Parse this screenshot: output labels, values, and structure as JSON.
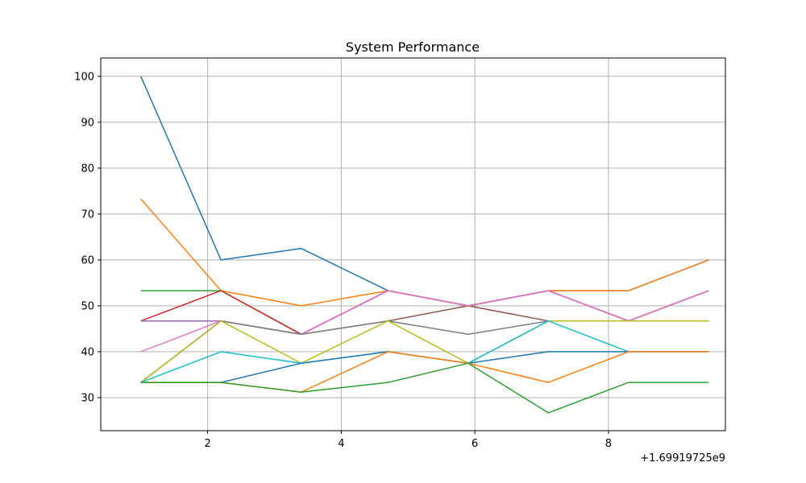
{
  "chart_data": {
    "type": "line",
    "title": "System Performance",
    "xlabel": "",
    "ylabel": "",
    "x_offset_label": "+1.69919725e9",
    "x": [
      1.0,
      2.2,
      3.4,
      4.7,
      5.9,
      7.1,
      8.3,
      9.5
    ],
    "xlim": [
      0.4,
      9.75
    ],
    "ylim": [
      22.8,
      104
    ],
    "x_ticks": [
      2,
      4,
      6,
      8
    ],
    "y_ticks": [
      30,
      40,
      50,
      60,
      70,
      80,
      90,
      100
    ],
    "grid": true,
    "series": [
      {
        "color": "#1f77b4",
        "values": [
          100,
          60,
          62.5,
          53.3,
          50,
          53.3,
          53.3,
          60
        ]
      },
      {
        "color": "#ff7f0e",
        "values": [
          73.3,
          53.3,
          50,
          53.3,
          50,
          53.3,
          53.3,
          60
        ]
      },
      {
        "color": "#2ca02c",
        "values": [
          53.3,
          53.3,
          43.8,
          53.3,
          50,
          53.3,
          46.7,
          53.3
        ]
      },
      {
        "color": "#d62728",
        "values": [
          46.7,
          53.3,
          43.8,
          53.3,
          50,
          53.3,
          46.7,
          53.3
        ]
      },
      {
        "color": "#9467bd",
        "values": [
          46.7,
          46.7,
          43.8,
          53.3,
          50,
          53.3,
          46.7,
          53.3
        ]
      },
      {
        "color": "#8c564b",
        "values": [
          33.3,
          46.7,
          43.8,
          46.7,
          50,
          46.7,
          46.7,
          46.7
        ]
      },
      {
        "color": "#e377c2",
        "values": [
          40,
          46.7,
          43.8,
          53.3,
          50,
          53.3,
          46.7,
          53.3
        ]
      },
      {
        "color": "#7f7f7f",
        "values": [
          33.3,
          46.7,
          43.8,
          46.7,
          43.8,
          46.7,
          46.7,
          46.7
        ]
      },
      {
        "color": "#bcbd22",
        "values": [
          33.3,
          46.7,
          37.5,
          46.7,
          37.5,
          46.7,
          46.7,
          46.7
        ]
      },
      {
        "color": "#17becf",
        "values": [
          33.3,
          40,
          37.5,
          40,
          37.5,
          46.7,
          40,
          40
        ]
      },
      {
        "color": "#1f77b4",
        "values": [
          33.3,
          33.3,
          37.5,
          40,
          37.5,
          40,
          40,
          40
        ]
      },
      {
        "color": "#ff7f0e",
        "values": [
          33.3,
          33.3,
          31.2,
          40,
          37.5,
          33.3,
          40,
          40
        ]
      },
      {
        "color": "#2ca02c",
        "values": [
          33.3,
          33.3,
          31.2,
          33.3,
          37.5,
          26.7,
          33.3,
          33.3
        ]
      }
    ]
  }
}
